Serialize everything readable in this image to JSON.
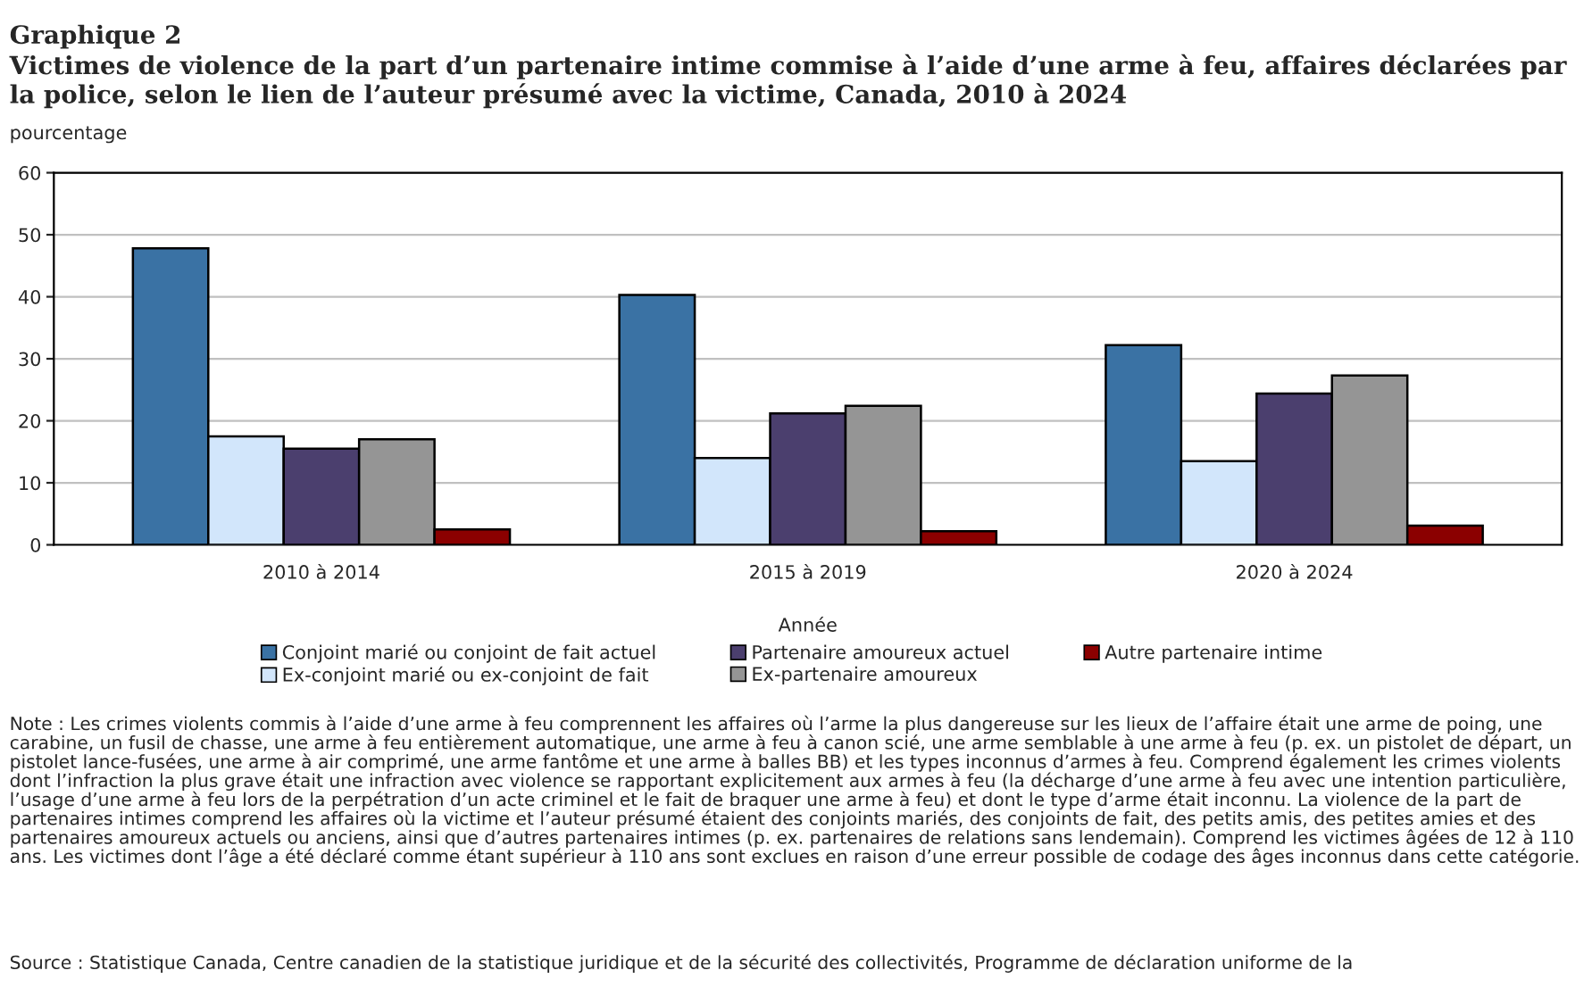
{
  "chart_data": {
    "type": "bar",
    "title": "Graphique 2",
    "subtitle": "Victimes de violence de la part d’un partenaire intime commise à l’aide d’une arme à feu, affaires déclarées par la police, selon le lien de l’auteur présumé avec la victime, Canada, 2010 à 2024",
    "ylabel": "pourcentage",
    "xlabel": "Année",
    "categories": [
      "2010 à 2014",
      "2015 à 2019",
      "2020 à 2024"
    ],
    "series": [
      {
        "name": "Conjoint marié ou conjoint de fait actuel",
        "color": "#3a72a4",
        "values": [
          47.8,
          40.3,
          32.2
        ]
      },
      {
        "name": "Ex-conjoint marié ou ex-conjoint de fait",
        "color": "#d2e6fb",
        "values": [
          17.5,
          14.0,
          13.5
        ]
      },
      {
        "name": "Partenaire amoureux actuel",
        "color": "#4b3f6e",
        "values": [
          15.5,
          21.2,
          24.4
        ]
      },
      {
        "name": "Ex-partenaire amoureux",
        "color": "#959595",
        "values": [
          17.0,
          22.4,
          27.3
        ]
      },
      {
        "name": "Autre partenaire intime",
        "color": "#8b0000",
        "values": [
          2.5,
          2.2,
          3.1
        ]
      }
    ],
    "ylim": [
      0,
      60
    ],
    "yticks": [
      0,
      10,
      20,
      30,
      40,
      50,
      60
    ],
    "grid": "y",
    "legend": "bottom",
    "annotations": [
      "Note : Les crimes violents commis à l’aide d’une arme à feu comprennent les affaires où l’arme la plus dangereuse sur les lieux de l’affaire était une arme de poing, une carabine, un fusil de chasse, une arme à feu entièrement automatique, une arme à feu à canon scié, une arme semblable à une arme à feu (p. ex. un pistolet de départ, un pistolet lance-fusées, une arme à air comprimé, une arme fantôme et une arme à balles BB) et les types inconnus d’armes à feu. Comprend également les crimes violents dont l’infraction la plus grave était une infraction avec violence se rapportant explicitement aux armes à feu (la décharge d’une arme à feu avec une intention particulière, l’usage d’une arme à feu lors de la perpétration d’un acte criminel et le fait de braquer une arme à feu) et dont le type d’arme était inconnu. La violence de la part de partenaires intimes comprend les affaires où la victime et l’auteur présumé étaient des conjoints mariés, des conjoints de fait, des petits amis, des petites amies et des partenaires amoureux actuels ou anciens, ainsi que d’autres partenaires intimes (p. ex. partenaires de relations sans lendemain). Comprend les victimes âgées de 12 à 110 ans. Les victimes dont l’âge a été déclaré comme étant supérieur à 110 ans sont exclues en raison d’une erreur possible de codage des âges inconnus dans cette catégorie.",
      "Source : Statistique Canada, Centre canadien de la statistique juridique et de la sécurité des collectivités, Programme de déclaration uniforme de la"
    ]
  }
}
